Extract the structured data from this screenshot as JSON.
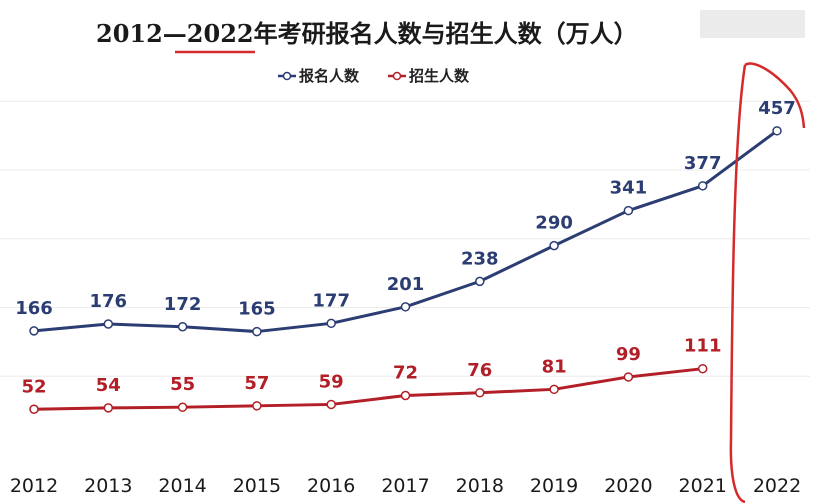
{
  "chart_data": {
    "type": "line",
    "title": "2012—2022年考研报名人数与招生人数（万人）",
    "categories": [
      "2012",
      "2013",
      "2014",
      "2015",
      "2016",
      "2017",
      "2018",
      "2019",
      "2020",
      "2021",
      "2022"
    ],
    "series": [
      {
        "name": "报名人数",
        "color": "#2b3d72",
        "values": [
          166,
          176,
          172,
          165,
          177,
          201,
          238,
          290,
          341,
          377,
          457
        ]
      },
      {
        "name": "招生人数",
        "color": "#b21f27",
        "values": [
          52,
          54,
          55,
          57,
          59,
          72,
          76,
          81,
          99,
          111,
          null
        ]
      }
    ],
    "ylim": [
      0,
      560
    ],
    "grid": true,
    "legend": "top-center",
    "annotation_color": "#d42a2a"
  }
}
